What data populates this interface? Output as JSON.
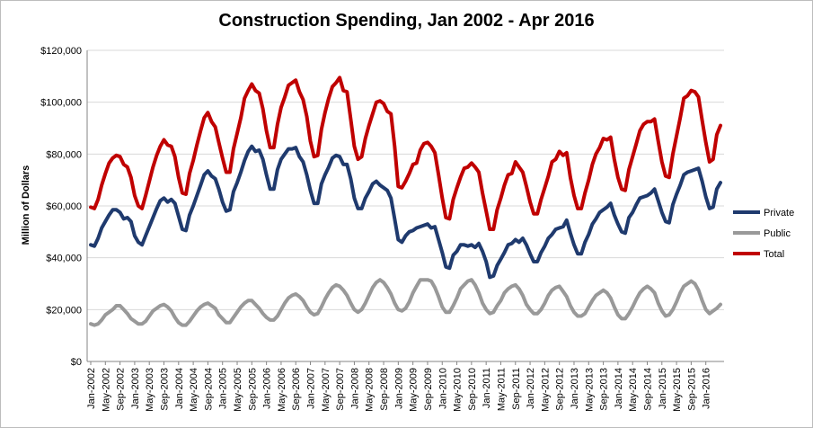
{
  "chart_data": {
    "type": "line",
    "title": "Construction Spending, Jan 2002 - Apr 2016",
    "xlabel": "",
    "ylabel": "Million of Dollars",
    "ylim": [
      0,
      120000
    ],
    "y_ticks": [
      "$0",
      "$20,000",
      "$40,000",
      "$60,000",
      "$80,000",
      "$100,000",
      "$120,000"
    ],
    "x_tick_labels": [
      "Jan-2002",
      "May-2002",
      "Sep-2002",
      "Jan-2003",
      "May-2003",
      "Sep-2003",
      "Jan-2004",
      "May-2004",
      "Sep-2004",
      "Jan-2005",
      "May-2005",
      "Sep-2005",
      "Jan-2006",
      "May-2006",
      "Sep-2006",
      "Jan-2007",
      "May-2007",
      "Sep-2007",
      "Jan-2008",
      "May-2008",
      "Sep-2008",
      "Jan-2009",
      "May-2009",
      "Sep-2009",
      "Jan-2010",
      "May-2010",
      "Sep-2010",
      "Jan-2011",
      "May-2011",
      "Sep-2011",
      "Jan-2012",
      "May-2012",
      "Sep-2012",
      "Jan-2013",
      "May-2013",
      "Sep-2013",
      "Jan-2014",
      "May-2014",
      "Sep-2014",
      "Jan-2015",
      "May-2015",
      "Sep-2015",
      "Jan-2016"
    ],
    "x_start": "Jan-2002",
    "x_end": "Apr-2016",
    "grid": "horizontal",
    "legend_position": "right",
    "series": [
      {
        "name": "Private",
        "color": "#1f3a6e",
        "values": [
          45000,
          44500,
          47500,
          51500,
          54000,
          56500,
          58500,
          58500,
          57500,
          55000,
          55500,
          54000,
          48500,
          46000,
          45000,
          48500,
          52000,
          55500,
          59000,
          62000,
          63000,
          61500,
          62500,
          61000,
          56000,
          51000,
          50500,
          56500,
          60000,
          64000,
          68000,
          72000,
          73500,
          71500,
          70500,
          66500,
          61500,
          58000,
          58500,
          65500,
          69000,
          73000,
          77500,
          81000,
          83000,
          81000,
          81500,
          78000,
          72000,
          66500,
          66500,
          74000,
          78000,
          80000,
          82000,
          82000,
          82500,
          79000,
          77000,
          72000,
          66000,
          61000,
          61000,
          68500,
          72000,
          75000,
          78500,
          79500,
          79000,
          76000,
          76000,
          70500,
          63000,
          59000,
          59000,
          63000,
          65500,
          68500,
          69500,
          68000,
          67000,
          66000,
          63000,
          55000,
          47000,
          46000,
          48500,
          50000,
          50500,
          51500,
          52000,
          52500,
          53000,
          51500,
          52000,
          47000,
          42000,
          36500,
          36000,
          41000,
          42500,
          45000,
          45000,
          44500,
          45000,
          44000,
          45500,
          42500,
          38500,
          32500,
          33000,
          37000,
          39500,
          42000,
          45000,
          45500,
          47000,
          46000,
          47500,
          45000,
          41500,
          38500,
          38500,
          42000,
          44500,
          47500,
          49000,
          51000,
          51500,
          52000,
          54500,
          49500,
          45000,
          41500,
          41500,
          46000,
          49000,
          53000,
          55000,
          57500,
          58500,
          59500,
          61000,
          56500,
          53000,
          50000,
          49500,
          55500,
          57500,
          60500,
          63000,
          63500,
          64000,
          65000,
          66500,
          62000,
          57500,
          54000,
          53500,
          60500,
          64500,
          68000,
          72000,
          73000,
          73500,
          74000,
          74500,
          69500,
          63500,
          59000,
          59500,
          66500,
          69000
        ]
      },
      {
        "name": "Public",
        "color": "#999999",
        "values": [
          14500,
          14000,
          14500,
          16000,
          18000,
          19000,
          20000,
          21500,
          21500,
          20000,
          18500,
          16500,
          15500,
          14500,
          14500,
          15500,
          17500,
          19500,
          20500,
          21500,
          22000,
          21000,
          19500,
          17000,
          15000,
          14000,
          14000,
          15500,
          17500,
          19500,
          21000,
          22000,
          22500,
          21500,
          20500,
          18000,
          16500,
          15000,
          15000,
          17000,
          19000,
          21000,
          22500,
          23500,
          23500,
          22000,
          20500,
          18500,
          17000,
          16000,
          16000,
          17500,
          20000,
          22500,
          24500,
          25500,
          26000,
          25000,
          23500,
          21000,
          19000,
          18000,
          18500,
          21000,
          24000,
          26500,
          28500,
          29500,
          29000,
          27500,
          25500,
          22500,
          20000,
          19000,
          20000,
          22500,
          25500,
          28500,
          30500,
          31500,
          30500,
          28500,
          26000,
          22500,
          20000,
          19500,
          20500,
          23000,
          26500,
          29000,
          31500,
          31500,
          31500,
          31000,
          28500,
          25000,
          21000,
          19000,
          19000,
          21500,
          24500,
          28000,
          29500,
          31000,
          31500,
          29500,
          26500,
          22500,
          20000,
          18500,
          19000,
          21500,
          23500,
          26500,
          28000,
          29000,
          29500,
          28000,
          25500,
          22000,
          20000,
          18500,
          18500,
          20000,
          22500,
          25500,
          27500,
          28500,
          29000,
          27000,
          25000,
          21500,
          19000,
          17500,
          17500,
          18500,
          21000,
          23500,
          25500,
          26500,
          27500,
          26500,
          24500,
          21000,
          18000,
          16500,
          16500,
          18500,
          21000,
          24000,
          26500,
          28000,
          29000,
          28000,
          26500,
          22500,
          19500,
          17500,
          18000,
          20000,
          23000,
          26500,
          29000,
          30000,
          31000,
          30000,
          27500,
          23500,
          20000,
          18500,
          19500,
          20500,
          22000
        ]
      },
      {
        "name": "Total",
        "color": "#c00000",
        "values": [
          59500,
          59000,
          62500,
          68000,
          72500,
          76500,
          78500,
          79500,
          79000,
          76000,
          75000,
          71000,
          64000,
          60000,
          59000,
          64000,
          69500,
          75000,
          79500,
          83000,
          85500,
          83500,
          83000,
          79000,
          71000,
          65000,
          64500,
          72500,
          77500,
          83500,
          89000,
          94000,
          96000,
          92500,
          90500,
          84500,
          78500,
          73000,
          73000,
          82000,
          88000,
          94000,
          101500,
          104500,
          107000,
          104500,
          103500,
          97500,
          89000,
          82500,
          82500,
          91500,
          98000,
          102000,
          106500,
          107500,
          108500,
          104000,
          101000,
          94500,
          85000,
          79000,
          79500,
          89500,
          96000,
          101500,
          106000,
          107500,
          109500,
          104500,
          104000,
          93500,
          83000,
          78000,
          79000,
          86000,
          91000,
          95500,
          100000,
          100500,
          99500,
          96500,
          95500,
          83000,
          67500,
          67000,
          69500,
          72500,
          76000,
          76500,
          81500,
          84000,
          84500,
          83000,
          80500,
          72000,
          63000,
          55500,
          55000,
          62500,
          67000,
          71000,
          74500,
          75000,
          76500,
          75000,
          73000,
          65000,
          58000,
          51000,
          51000,
          58500,
          63000,
          68000,
          72000,
          72500,
          77000,
          75000,
          73000,
          67500,
          61500,
          57000,
          57000,
          62500,
          67000,
          71500,
          77000,
          78000,
          81000,
          79500,
          80500,
          71000,
          64000,
          59000,
          59000,
          65000,
          70000,
          76000,
          80000,
          82500,
          86000,
          85500,
          86500,
          78000,
          71000,
          66500,
          66000,
          74000,
          79000,
          84000,
          89000,
          91500,
          92500,
          92500,
          93500,
          85000,
          77000,
          71500,
          71000,
          80000,
          87000,
          94000,
          101500,
          102500,
          104500,
          104000,
          102000,
          93000,
          84500,
          77000,
          78000,
          87500,
          91000
        ]
      }
    ]
  }
}
